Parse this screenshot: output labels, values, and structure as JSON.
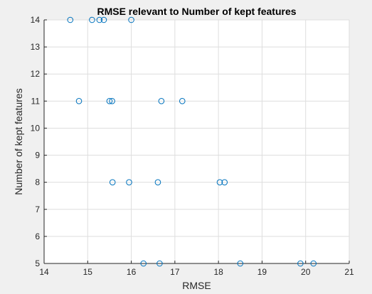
{
  "chart_data": {
    "type": "scatter",
    "title": "RMSE relevant to Number of kept features",
    "xlabel": "RMSE",
    "ylabel": "Number of kept features",
    "xlim": [
      14,
      21
    ],
    "ylim": [
      5,
      14
    ],
    "xticks": [
      14,
      15,
      16,
      17,
      18,
      19,
      20,
      21
    ],
    "yticks": [
      5,
      6,
      7,
      8,
      9,
      10,
      11,
      12,
      13,
      14
    ],
    "grid": true,
    "marker": "circle-open",
    "colors": {
      "marker": "#0072bd",
      "plot_background": "#ffffff",
      "figure_background": "#f0f0f0"
    },
    "points": [
      {
        "x": 14.6,
        "y": 14
      },
      {
        "x": 15.1,
        "y": 14
      },
      {
        "x": 15.27,
        "y": 14
      },
      {
        "x": 15.37,
        "y": 14
      },
      {
        "x": 16.0,
        "y": 14
      },
      {
        "x": 14.8,
        "y": 11
      },
      {
        "x": 15.5,
        "y": 11
      },
      {
        "x": 15.56,
        "y": 11
      },
      {
        "x": 16.69,
        "y": 11
      },
      {
        "x": 17.17,
        "y": 11
      },
      {
        "x": 15.57,
        "y": 8
      },
      {
        "x": 15.95,
        "y": 8
      },
      {
        "x": 16.61,
        "y": 8
      },
      {
        "x": 18.03,
        "y": 8
      },
      {
        "x": 18.14,
        "y": 8
      },
      {
        "x": 16.28,
        "y": 5
      },
      {
        "x": 16.65,
        "y": 5
      },
      {
        "x": 18.5,
        "y": 5
      },
      {
        "x": 19.88,
        "y": 5
      },
      {
        "x": 20.18,
        "y": 5
      }
    ]
  }
}
